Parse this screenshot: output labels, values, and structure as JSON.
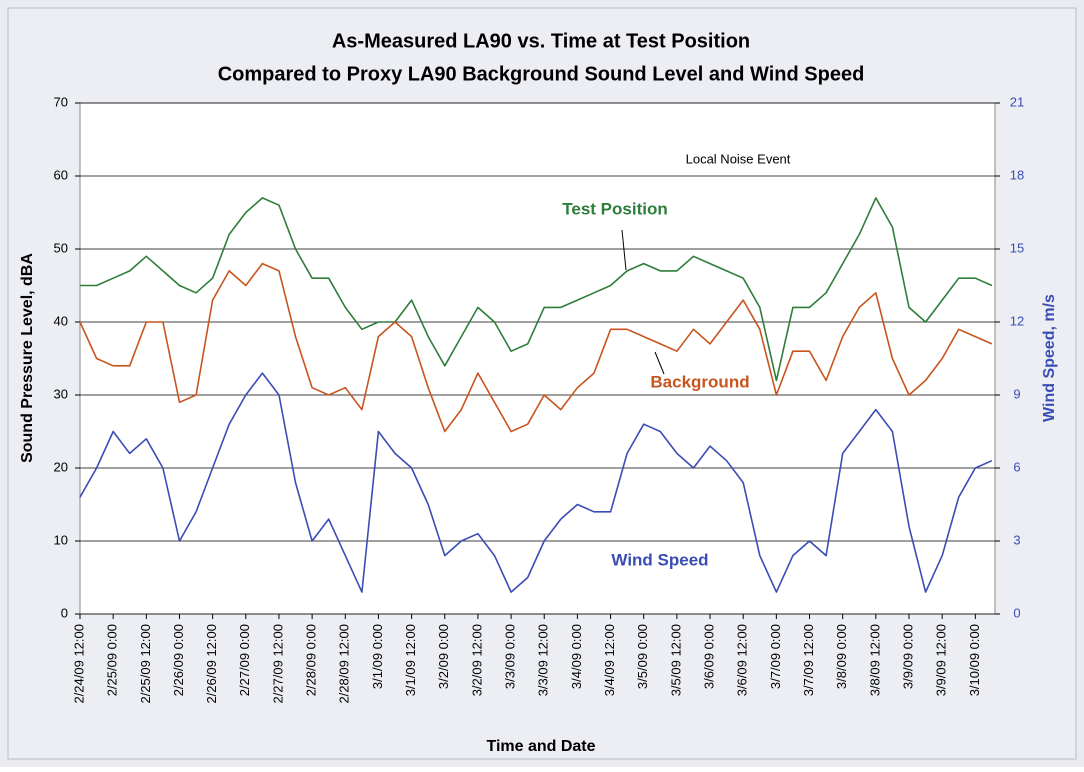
{
  "chart_data": {
    "type": "line",
    "title": "As-Measured LA90 vs. Time at Test Position",
    "subtitle": "Compared to Proxy LA90 Background Sound Level and Wind Speed",
    "x_label": "Time and Date",
    "y_label": "Sound Pressure Level, dBA",
    "y2_label": "Wind Speed, m/s",
    "annotations": [
      "Test Position",
      "Background",
      "Wind Speed",
      "Local Noise Event"
    ],
    "categories": [
      "2/24/09 12:00",
      null,
      "2/25/09 0:00",
      null,
      "2/25/09 12:00",
      null,
      "2/26/09 0:00",
      null,
      "2/26/09 12:00",
      null,
      "2/27/09 0:00",
      null,
      "2/27/09 12:00",
      null,
      "2/28/09 0:00",
      null,
      "2/28/09 12:00",
      null,
      "3/1/09 0:00",
      null,
      "3/1/09 12:00",
      null,
      "3/2/09 0:00",
      null,
      "3/2/09 12:00",
      null,
      "3/3/09 0:00",
      null,
      "3/3/09 12:00",
      null,
      "3/4/09 0:00",
      null,
      "3/4/09 12:00",
      null,
      "3/5/09 0:00",
      null,
      "3/5/09 12:00",
      null,
      "3/6/09 0:00",
      null,
      "3/6/09 12:00",
      null,
      "3/7/09 0:00",
      null,
      "3/7/09 12:00",
      null,
      "3/8/09 0:00",
      null,
      "3/8/09 12:00",
      null,
      "3/9/09 0:00",
      null,
      "3/9/09 12:00",
      null,
      "3/10/09 0:00",
      null
    ],
    "series": [
      {
        "name": "Test Position",
        "color": "#2e7d3a",
        "values": [
          45,
          45,
          46,
          47,
          49,
          47,
          45,
          44,
          46,
          52,
          55,
          57,
          56,
          50,
          46,
          46,
          42,
          39,
          40,
          40,
          43,
          38,
          34,
          38,
          42,
          40,
          36,
          37,
          42,
          42,
          43,
          44,
          45,
          47,
          48,
          47,
          47,
          49,
          48,
          47,
          46,
          42,
          32,
          42,
          42,
          44,
          48,
          52,
          57,
          53,
          42,
          40,
          43,
          46,
          46,
          45
        ]
      },
      {
        "name": "Background",
        "color": "#c8541e",
        "values": [
          40,
          35,
          34,
          34,
          40,
          40,
          29,
          30,
          43,
          47,
          45,
          48,
          47,
          38,
          31,
          30,
          31,
          28,
          38,
          40,
          38,
          31,
          25,
          28,
          33,
          29,
          25,
          26,
          30,
          28,
          31,
          33,
          39,
          39,
          38,
          37,
          36,
          39,
          37,
          40,
          43,
          39,
          30,
          36,
          36,
          32,
          38,
          42,
          44,
          35,
          30,
          32,
          35,
          39,
          38,
          37
        ]
      },
      {
        "name": "Wind Speed",
        "color": "#3a4db5",
        "axis": "y2",
        "values": [
          4.8,
          6.0,
          7.5,
          6.6,
          7.2,
          6.0,
          3.0,
          4.2,
          6.0,
          7.8,
          9.0,
          9.9,
          9.0,
          5.4,
          3.0,
          3.9,
          2.4,
          0.9,
          7.5,
          6.6,
          6.0,
          4.5,
          2.4,
          3.0,
          3.3,
          2.4,
          0.9,
          1.5,
          3.0,
          3.9,
          4.5,
          4.2,
          4.2,
          6.6,
          7.8,
          7.5,
          6.6,
          6.0,
          6.9,
          6.3,
          5.4,
          2.4,
          0.9,
          2.4,
          3.0,
          2.4,
          6.6,
          7.5,
          8.4,
          7.5,
          3.6,
          0.9,
          2.4,
          4.8,
          6.0,
          6.3
        ]
      }
    ],
    "ylim": [
      0,
      70
    ],
    "yticks": [
      0,
      10,
      20,
      30,
      40,
      50,
      60,
      70
    ],
    "y2lim": [
      0,
      21
    ],
    "y2ticks": [
      0,
      3,
      6,
      9,
      12,
      15,
      18,
      21
    ],
    "grid": true
  }
}
